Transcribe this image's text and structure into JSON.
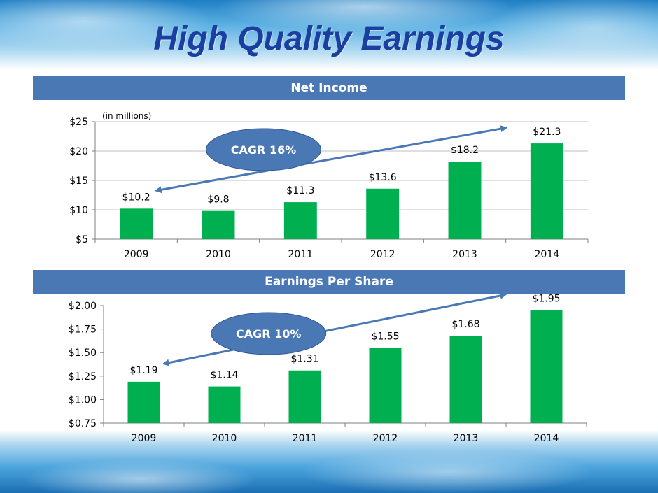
{
  "title": "High Quality Earnings",
  "colors": {
    "bar": "#00b050",
    "header": "#4a78b5",
    "ellipse": "#4a78b5",
    "arrow": "#4a78b5",
    "title": "#1a3fa0"
  },
  "chart_data": [
    {
      "type": "bar",
      "header": "Net Income",
      "note": "(in millions)",
      "categories": [
        "2009",
        "2010",
        "2011",
        "2012",
        "2013",
        "2014"
      ],
      "values": [
        10.2,
        9.8,
        11.3,
        13.6,
        18.2,
        21.3
      ],
      "data_labels": [
        "$10.2",
        "$9.8",
        "$11.3",
        "$13.6",
        "$18.2",
        "$21.3"
      ],
      "ylim": [
        5,
        25
      ],
      "y_ticks": [
        5,
        10,
        15,
        20,
        25
      ],
      "y_tick_labels": [
        "$5",
        "$10",
        "$15",
        "$20",
        "$25"
      ],
      "grid": true,
      "annotation": {
        "text": "CAGR 16%",
        "arrow_from": "2009",
        "arrow_to": "2014"
      }
    },
    {
      "type": "bar",
      "header": "Earnings Per Share",
      "categories": [
        "2009",
        "2010",
        "2011",
        "2012",
        "2013",
        "2014"
      ],
      "values": [
        1.19,
        1.14,
        1.31,
        1.55,
        1.68,
        1.95
      ],
      "data_labels": [
        "$1.19",
        "$1.14",
        "$1.31",
        "$1.55",
        "$1.68",
        "$1.95"
      ],
      "ylim": [
        0.75,
        2.0
      ],
      "y_ticks": [
        0.75,
        1.0,
        1.25,
        1.5,
        1.75,
        2.0
      ],
      "y_tick_labels": [
        "$0.75",
        "$1.00",
        "$1.25",
        "$1.50",
        "$1.75",
        "$2.00"
      ],
      "grid": false,
      "annotation": {
        "text": "CAGR 10%",
        "arrow_from": "2009",
        "arrow_to": "2014"
      }
    }
  ]
}
